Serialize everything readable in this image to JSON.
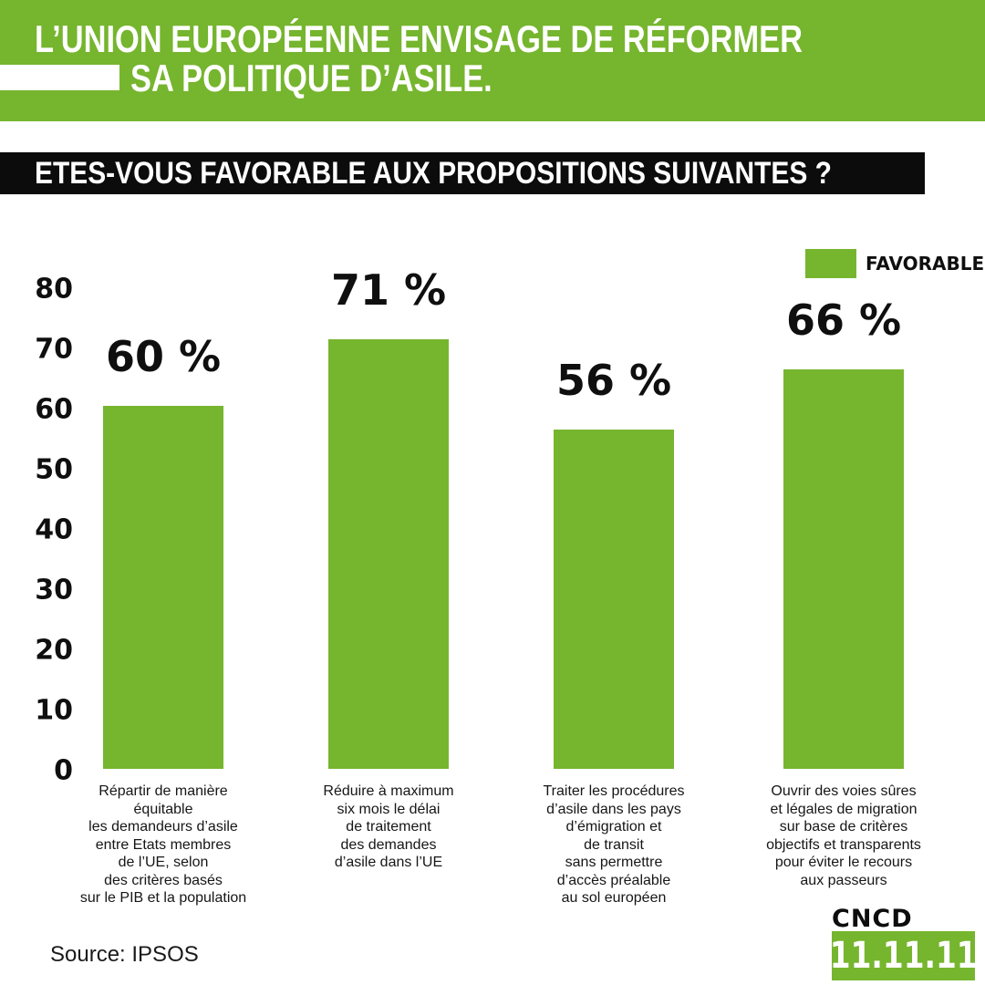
{
  "header": {
    "title_line1": "L’UNION EUROPÉENNE ENVISAGE DE RÉFORMER",
    "title_line2": "SA POLITIQUE D’ASILE.",
    "background_color": "#76b52e",
    "text_color": "#ffffff"
  },
  "question": {
    "text": "ETES-VOUS FAVORABLE AUX PROPOSITIONS SUIVANTES ?",
    "background_color": "#0c0c0c",
    "text_color": "#ffffff"
  },
  "legend": {
    "label": "FAVORABLE",
    "swatch_color": "#76b52e",
    "position": "top-right"
  },
  "chart_data": {
    "type": "bar",
    "title": "",
    "xlabel": "",
    "ylabel": "",
    "ylim": [
      0,
      80
    ],
    "yticks": [
      0,
      10,
      20,
      30,
      40,
      50,
      60,
      70,
      80
    ],
    "grid": false,
    "legend_position": "top-right",
    "series_name": "FAVORABLE",
    "bar_color": "#76b52e",
    "values": [
      60,
      71,
      56,
      66
    ],
    "value_labels": [
      "60 %",
      "71 %",
      "56 %",
      "66 %"
    ],
    "categories": [
      [
        "Répartir de manière",
        "équitable",
        "les demandeurs d’asile",
        "entre Etats membres",
        "de l’UE, selon",
        "des critères basés",
        "sur le PIB et la population"
      ],
      [
        "Réduire à maximum",
        "six mois le délai",
        "de traitement",
        "des demandes",
        "d’asile dans l’UE"
      ],
      [
        "Traiter les procédures",
        "d’asile dans les pays",
        "d’émigration et",
        "de transit",
        "sans permettre",
        "d’accès préalable",
        "au sol européen"
      ],
      [
        "Ouvrir des voies sûres",
        "et légales de migration",
        "sur base de critères",
        "objectifs et transparents",
        "pour éviter le recours",
        "aux passeurs"
      ]
    ]
  },
  "footer": {
    "source": "Source: IPSOS",
    "logo_top": "CNCD",
    "logo_box": "11.11.11",
    "logo_box_color": "#76b52e"
  }
}
